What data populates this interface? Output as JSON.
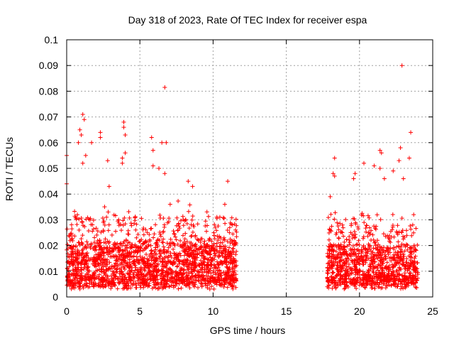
{
  "chart_data": {
    "type": "scatter",
    "title": "Day 318 of 2023, Rate Of TEC Index for receiver espa",
    "xlabel": "GPS time / hours",
    "ylabel": "ROTI / TECUs",
    "xlim": [
      0,
      25
    ],
    "ylim": [
      0,
      0.1
    ],
    "xticks": [
      0,
      5,
      10,
      15,
      20,
      25
    ],
    "yticks": [
      0,
      0.01,
      0.02,
      0.03,
      0.04,
      0.05,
      0.06,
      0.07,
      0.08,
      0.09,
      0.1
    ],
    "xtick_labels": [
      "0",
      "5",
      "10",
      "15",
      "20",
      "25"
    ],
    "ytick_labels": [
      "0",
      "0.01",
      "0.02",
      "0.03",
      "0.04",
      "0.05",
      "0.06",
      "0.07",
      "0.08",
      "0.09",
      "0.1"
    ],
    "grid": true,
    "marker": "+",
    "color": "#ff0000",
    "outliers": [
      {
        "x": 0.0,
        "y": 0.055
      },
      {
        "x": 0.0,
        "y": 0.044
      },
      {
        "x": 0.8,
        "y": 0.06
      },
      {
        "x": 0.9,
        "y": 0.065
      },
      {
        "x": 1.0,
        "y": 0.063
      },
      {
        "x": 1.1,
        "y": 0.071
      },
      {
        "x": 1.2,
        "y": 0.069
      },
      {
        "x": 1.3,
        "y": 0.055
      },
      {
        "x": 1.1,
        "y": 0.052
      },
      {
        "x": 2.3,
        "y": 0.064
      },
      {
        "x": 2.3,
        "y": 0.062
      },
      {
        "x": 1.7,
        "y": 0.06
      },
      {
        "x": 2.8,
        "y": 0.053
      },
      {
        "x": 2.9,
        "y": 0.043
      },
      {
        "x": 3.9,
        "y": 0.068
      },
      {
        "x": 3.9,
        "y": 0.066
      },
      {
        "x": 4.0,
        "y": 0.063
      },
      {
        "x": 3.8,
        "y": 0.054
      },
      {
        "x": 4.0,
        "y": 0.056
      },
      {
        "x": 3.8,
        "y": 0.052
      },
      {
        "x": 5.8,
        "y": 0.062
      },
      {
        "x": 5.9,
        "y": 0.057
      },
      {
        "x": 5.9,
        "y": 0.051
      },
      {
        "x": 6.5,
        "y": 0.06
      },
      {
        "x": 6.8,
        "y": 0.06
      },
      {
        "x": 6.7,
        "y": 0.0815
      },
      {
        "x": 6.7,
        "y": 0.048
      },
      {
        "x": 6.3,
        "y": 0.05
      },
      {
        "x": 8.3,
        "y": 0.045
      },
      {
        "x": 8.6,
        "y": 0.043
      },
      {
        "x": 11.0,
        "y": 0.045
      },
      {
        "x": 10.8,
        "y": 0.036
      },
      {
        "x": 18.3,
        "y": 0.054
      },
      {
        "x": 18.2,
        "y": 0.048
      },
      {
        "x": 18.3,
        "y": 0.047
      },
      {
        "x": 18.0,
        "y": 0.039
      },
      {
        "x": 19.7,
        "y": 0.048
      },
      {
        "x": 19.6,
        "y": 0.046
      },
      {
        "x": 20.3,
        "y": 0.052
      },
      {
        "x": 21.0,
        "y": 0.051
      },
      {
        "x": 21.4,
        "y": 0.057
      },
      {
        "x": 21.5,
        "y": 0.056
      },
      {
        "x": 21.4,
        "y": 0.05
      },
      {
        "x": 21.7,
        "y": 0.046
      },
      {
        "x": 22.3,
        "y": 0.049
      },
      {
        "x": 22.8,
        "y": 0.058
      },
      {
        "x": 22.9,
        "y": 0.09
      },
      {
        "x": 22.7,
        "y": 0.053
      },
      {
        "x": 23.0,
        "y": 0.046
      },
      {
        "x": 23.4,
        "y": 0.054
      },
      {
        "x": 23.5,
        "y": 0.064
      },
      {
        "x": 23.7,
        "y": 0.032
      }
    ],
    "segments": [
      {
        "x_start": 0.0,
        "x_end": 11.6,
        "y_floor": 0.003,
        "y_typical": 0.012,
        "y_max": 0.038
      },
      {
        "x_start": 17.8,
        "x_end": 24.0,
        "y_floor": 0.003,
        "y_typical": 0.011,
        "y_max": 0.035
      }
    ]
  }
}
